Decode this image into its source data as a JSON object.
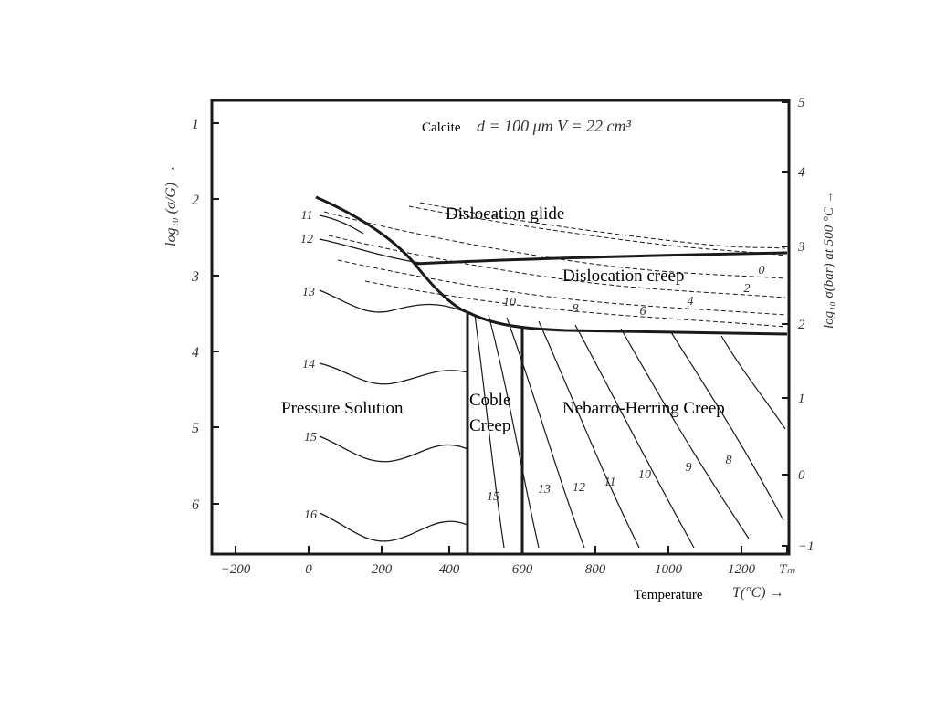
{
  "labels": {
    "material": "Calcite",
    "header_params": "d = 100 μm V = 22 cm³",
    "left_axis_title": "log₁₀ (σ/G) →",
    "right_axis_title": "log₁₀ σ(bar) at 500 °C →",
    "x_axis_word": "Temperature",
    "x_axis_symbol": "T(°C) →"
  },
  "regions": {
    "dislocation_glide": "Dislocation glide",
    "dislocation_creep": "Dislocation creep",
    "pressure_solution": "Pressure Solution",
    "coble_line1": "Coble",
    "coble_line2": "Creep",
    "nabarro_herring": "Nebarro-Herring Creep"
  },
  "axes": {
    "x_ticks": [
      "−200",
      "0",
      "200",
      "400",
      "600",
      "800",
      "1000",
      "1200",
      "Tₘ"
    ],
    "left_ticks": [
      "1",
      "2",
      "3",
      "4",
      "5",
      "6"
    ],
    "right_ticks": [
      "5",
      "4",
      "3",
      "2",
      "1",
      "0",
      "−1"
    ]
  },
  "contours": {
    "left_labels": [
      "11",
      "12",
      "13",
      "14",
      "15",
      "16"
    ],
    "top_right_labels": [
      "0",
      "2",
      "4",
      "6",
      "8",
      "10"
    ],
    "bottom_labels": [
      "15",
      "13",
      "12",
      "11",
      "10",
      "9",
      "8"
    ]
  },
  "colors": {
    "ink": "#1a1a1a",
    "background": "#ffffff"
  }
}
